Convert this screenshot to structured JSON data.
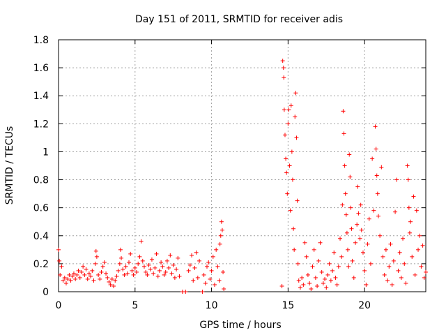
{
  "chart_data": {
    "type": "scatter",
    "title": "Day 151 of 2011, SRMTID for receiver adis",
    "xlabel": "GPS time / hours",
    "ylabel": "SRMTID / TECUs",
    "xlim": [
      0,
      24
    ],
    "ylim": [
      0,
      1.8
    ],
    "xticks": [
      0,
      5,
      10,
      15,
      20
    ],
    "xtick_labels": [
      "0",
      "5",
      "10",
      "15",
      "20"
    ],
    "yticks": [
      0,
      0.2,
      0.4,
      0.6,
      0.8,
      1.0,
      1.2,
      1.4,
      1.6,
      1.8
    ],
    "ytick_labels": [
      "0",
      "0.2",
      "0.4",
      "0.6",
      "0.8",
      "1",
      "1.2",
      "1.4",
      "1.6",
      "1.8"
    ],
    "grid": true,
    "marker": "+",
    "color": "#ff0000",
    "series": [
      {
        "name": "SRMTID",
        "points": [
          [
            0.0,
            0.3
          ],
          [
            0.05,
            0.22
          ],
          [
            0.1,
            0.12
          ],
          [
            0.2,
            0.18
          ],
          [
            0.3,
            0.08
          ],
          [
            0.4,
            0.1
          ],
          [
            0.5,
            0.06
          ],
          [
            0.6,
            0.09
          ],
          [
            0.7,
            0.12
          ],
          [
            0.8,
            0.08
          ],
          [
            0.9,
            0.11
          ],
          [
            1.0,
            0.13
          ],
          [
            1.1,
            0.09
          ],
          [
            1.2,
            0.12
          ],
          [
            1.3,
            0.15
          ],
          [
            1.4,
            0.1
          ],
          [
            1.5,
            0.14
          ],
          [
            1.6,
            0.18
          ],
          [
            1.7,
            0.12
          ],
          [
            1.8,
            0.16
          ],
          [
            1.9,
            0.09
          ],
          [
            2.0,
            0.13
          ],
          [
            2.1,
            0.11
          ],
          [
            2.2,
            0.15
          ],
          [
            2.3,
            0.08
          ],
          [
            2.4,
            0.2
          ],
          [
            2.45,
            0.29
          ],
          [
            2.5,
            0.25
          ],
          [
            2.6,
            0.12
          ],
          [
            2.7,
            0.09
          ],
          [
            2.8,
            0.14
          ],
          [
            2.9,
            0.18
          ],
          [
            3.0,
            0.21
          ],
          [
            3.1,
            0.13
          ],
          [
            3.2,
            0.1
          ],
          [
            3.3,
            0.07
          ],
          [
            3.4,
            0.05
          ],
          [
            3.5,
            0.09
          ],
          [
            3.6,
            0.04
          ],
          [
            3.7,
            0.08
          ],
          [
            3.8,
            0.11
          ],
          [
            3.9,
            0.15
          ],
          [
            4.0,
            0.2
          ],
          [
            4.05,
            0.3
          ],
          [
            4.1,
            0.24
          ],
          [
            4.2,
            0.16
          ],
          [
            4.3,
            0.12
          ],
          [
            4.4,
            0.18
          ],
          [
            4.5,
            0.13
          ],
          [
            4.6,
            0.21
          ],
          [
            4.7,
            0.27
          ],
          [
            4.8,
            0.15
          ],
          [
            4.9,
            0.12
          ],
          [
            5.0,
            0.17
          ],
          [
            5.1,
            0.14
          ],
          [
            5.2,
            0.2
          ],
          [
            5.3,
            0.25
          ],
          [
            5.4,
            0.36
          ],
          [
            5.5,
            0.22
          ],
          [
            5.6,
            0.18
          ],
          [
            5.7,
            0.14
          ],
          [
            5.8,
            0.12
          ],
          [
            5.9,
            0.19
          ],
          [
            6.0,
            0.16
          ],
          [
            6.1,
            0.23
          ],
          [
            6.2,
            0.13
          ],
          [
            6.3,
            0.17
          ],
          [
            6.4,
            0.27
          ],
          [
            6.5,
            0.11
          ],
          [
            6.6,
            0.15
          ],
          [
            6.7,
            0.21
          ],
          [
            6.8,
            0.18
          ],
          [
            6.9,
            0.12
          ],
          [
            7.0,
            0.14
          ],
          [
            7.1,
            0.22
          ],
          [
            7.2,
            0.17
          ],
          [
            7.3,
            0.26
          ],
          [
            7.4,
            0.13
          ],
          [
            7.5,
            0.19
          ],
          [
            7.6,
            0.1
          ],
          [
            7.7,
            0.16
          ],
          [
            7.8,
            0.24
          ],
          [
            7.9,
            0.11
          ],
          [
            8.1,
            0.0
          ],
          [
            8.3,
            0.0
          ],
          [
            8.5,
            0.15
          ],
          [
            8.6,
            0.19
          ],
          [
            8.7,
            0.26
          ],
          [
            8.8,
            0.08
          ],
          [
            8.9,
            0.17
          ],
          [
            9.0,
            0.28
          ],
          [
            9.1,
            0.1
          ],
          [
            9.2,
            0.22
          ],
          [
            9.4,
            0.0
          ],
          [
            9.5,
            0.12
          ],
          [
            9.6,
            0.06
          ],
          [
            9.7,
            0.18
          ],
          [
            9.8,
            0.21
          ],
          [
            9.9,
            0.09
          ],
          [
            10.0,
            0.15
          ],
          [
            10.1,
            0.25
          ],
          [
            10.2,
            0.05
          ],
          [
            10.3,
            0.3
          ],
          [
            10.4,
            0.18
          ],
          [
            10.5,
            0.08
          ],
          [
            10.55,
            0.34
          ],
          [
            10.6,
            0.4
          ],
          [
            10.65,
            0.5
          ],
          [
            10.7,
            0.44
          ],
          [
            10.75,
            0.14
          ],
          [
            10.8,
            0.02
          ],
          [
            14.6,
            0.04
          ],
          [
            14.65,
            1.65
          ],
          [
            14.7,
            1.6
          ],
          [
            14.72,
            1.53
          ],
          [
            14.75,
            1.3
          ],
          [
            14.8,
            1.12
          ],
          [
            14.85,
            0.95
          ],
          [
            14.9,
            0.85
          ],
          [
            14.95,
            0.7
          ],
          [
            15.0,
            1.2
          ],
          [
            15.05,
            1.3
          ],
          [
            15.1,
            0.9
          ],
          [
            15.15,
            0.58
          ],
          [
            15.2,
            1.33
          ],
          [
            15.25,
            1.0
          ],
          [
            15.3,
            0.8
          ],
          [
            15.35,
            0.45
          ],
          [
            15.4,
            0.3
          ],
          [
            15.45,
            1.25
          ],
          [
            15.5,
            1.42
          ],
          [
            15.55,
            1.1
          ],
          [
            15.6,
            0.65
          ],
          [
            15.65,
            0.2
          ],
          [
            15.7,
            0.08
          ],
          [
            15.8,
            0.03
          ],
          [
            15.9,
            0.1
          ],
          [
            16.0,
            0.05
          ],
          [
            16.1,
            0.35
          ],
          [
            16.2,
            0.25
          ],
          [
            16.3,
            0.12
          ],
          [
            16.4,
            0.06
          ],
          [
            16.5,
            0.02
          ],
          [
            16.6,
            0.18
          ],
          [
            16.7,
            0.3
          ],
          [
            16.8,
            0.1
          ],
          [
            16.9,
            0.04
          ],
          [
            17.0,
            0.22
          ],
          [
            17.1,
            0.35
          ],
          [
            17.2,
            0.14
          ],
          [
            17.3,
            0.06
          ],
          [
            17.4,
            0.09
          ],
          [
            17.5,
            0.03
          ],
          [
            17.6,
            0.12
          ],
          [
            17.7,
            0.2
          ],
          [
            17.8,
            0.08
          ],
          [
            17.9,
            0.15
          ],
          [
            18.0,
            0.28
          ],
          [
            18.1,
            0.1
          ],
          [
            18.2,
            0.05
          ],
          [
            18.3,
            0.18
          ],
          [
            18.4,
            0.38
          ],
          [
            18.5,
            0.25
          ],
          [
            18.55,
            0.62
          ],
          [
            18.6,
            1.29
          ],
          [
            18.65,
            1.13
          ],
          [
            18.7,
            0.9
          ],
          [
            18.75,
            0.7
          ],
          [
            18.8,
            0.55
          ],
          [
            18.85,
            0.42
          ],
          [
            18.9,
            0.3
          ],
          [
            18.95,
            0.18
          ],
          [
            19.0,
            0.98
          ],
          [
            19.05,
            0.82
          ],
          [
            19.1,
            0.6
          ],
          [
            19.15,
            0.45
          ],
          [
            19.2,
            0.22
          ],
          [
            19.3,
            0.1
          ],
          [
            19.4,
            0.35
          ],
          [
            19.5,
            0.48
          ],
          [
            19.55,
            0.75
          ],
          [
            19.6,
            0.56
          ],
          [
            19.7,
            0.38
          ],
          [
            19.75,
            0.62
          ],
          [
            19.8,
            0.44
          ],
          [
            19.9,
            0.28
          ],
          [
            20.0,
            0.15
          ],
          [
            20.1,
            0.05
          ],
          [
            20.2,
            0.34
          ],
          [
            20.3,
            0.52
          ],
          [
            20.4,
            0.2
          ],
          [
            20.5,
            0.95
          ],
          [
            20.6,
            0.58
          ],
          [
            20.7,
            1.18
          ],
          [
            20.75,
            1.02
          ],
          [
            20.8,
            0.83
          ],
          [
            20.85,
            0.7
          ],
          [
            20.9,
            0.54
          ],
          [
            21.0,
            0.4
          ],
          [
            21.1,
            0.89
          ],
          [
            21.2,
            0.25
          ],
          [
            21.3,
            0.12
          ],
          [
            21.4,
            0.3
          ],
          [
            21.5,
            0.08
          ],
          [
            21.6,
            0.18
          ],
          [
            21.7,
            0.34
          ],
          [
            21.8,
            0.05
          ],
          [
            21.9,
            0.22
          ],
          [
            22.0,
            0.57
          ],
          [
            22.1,
            0.8
          ],
          [
            22.2,
            0.15
          ],
          [
            22.3,
            0.28
          ],
          [
            22.4,
            0.1
          ],
          [
            22.5,
            0.38
          ],
          [
            22.6,
            0.2
          ],
          [
            22.7,
            0.06
          ],
          [
            22.8,
            0.9
          ],
          [
            22.85,
            0.8
          ],
          [
            22.9,
            0.6
          ],
          [
            22.95,
            0.42
          ],
          [
            23.0,
            0.5
          ],
          [
            23.1,
            0.25
          ],
          [
            23.2,
            0.68
          ],
          [
            23.3,
            0.12
          ],
          [
            23.4,
            0.58
          ],
          [
            23.5,
            0.3
          ],
          [
            23.6,
            0.4
          ],
          [
            23.7,
            0.18
          ],
          [
            23.8,
            0.33
          ],
          [
            23.9,
            0.1
          ],
          [
            24.0,
            0.14
          ]
        ]
      }
    ]
  }
}
